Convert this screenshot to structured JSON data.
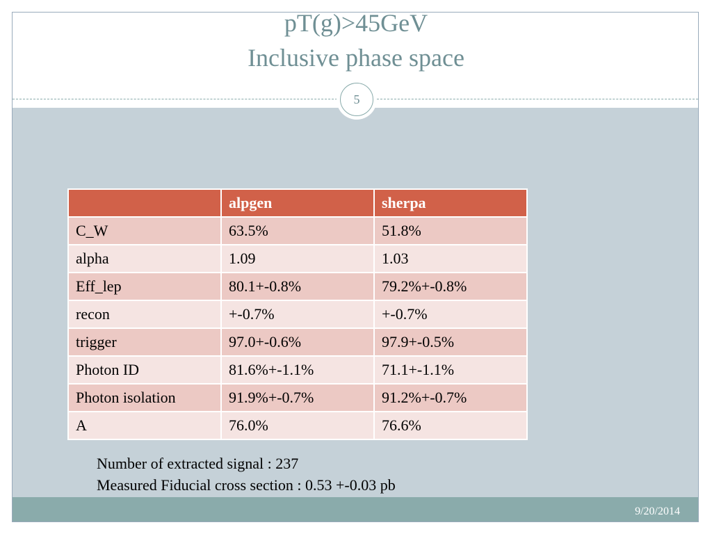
{
  "header": {
    "title_line1": "pT(g)>45GeV",
    "title_line2": "Inclusive phase space",
    "slide_number": "5"
  },
  "table": {
    "header": [
      "",
      "alpgen",
      "sherpa"
    ],
    "rows": [
      [
        "C_W",
        "63.5%",
        "51.8%"
      ],
      [
        "alpha",
        "1.09",
        "1.03"
      ],
      [
        "Eff_lep",
        "80.1+-0.8%",
        "79.2%+-0.8%"
      ],
      [
        "recon",
        "+-0.7%",
        "+-0.7%"
      ],
      [
        "trigger",
        "97.0+-0.6%",
        "97.9+-0.5%"
      ],
      [
        "Photon ID",
        "81.6%+-1.1%",
        "71.1+-1.1%"
      ],
      [
        "Photon isolation",
        "91.9%+-0.7%",
        "91.2%+-0.7%"
      ],
      [
        "A",
        "76.0%",
        "76.6%"
      ]
    ]
  },
  "notes": [
    "Number of extracted signal : 237",
    "Measured Fiducial cross section : 0.53 +-0.03 pb"
  ],
  "footer": {
    "date": "9/20/2014"
  }
}
